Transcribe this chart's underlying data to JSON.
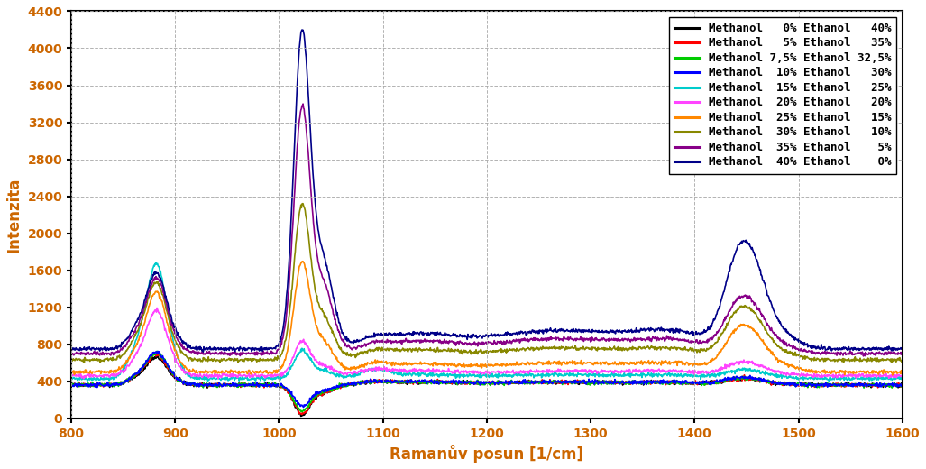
{
  "series": [
    {
      "label": "Methanol   0% Ethanol   40%",
      "color": "#000000",
      "lw": 1.2,
      "base": 360,
      "peak880": 650,
      "peak1020": 50,
      "peak1460": 50,
      "broad1100": 30,
      "broad1280": 30,
      "broad1380": 20
    },
    {
      "label": "Methanol   5% Ethanol   35%",
      "color": "#ff0000",
      "lw": 1.2,
      "base": 360,
      "peak880": 680,
      "peak1020": 60,
      "peak1460": 50,
      "broad1100": 30,
      "broad1280": 30,
      "broad1380": 20
    },
    {
      "label": "Methanol 7,5% Ethanol 32,5%",
      "color": "#00cc00",
      "lw": 1.2,
      "base": 360,
      "peak880": 700,
      "peak1020": 90,
      "peak1460": 55,
      "broad1100": 30,
      "broad1280": 30,
      "broad1380": 20
    },
    {
      "label": "Methanol  10% Ethanol   30%",
      "color": "#0000ff",
      "lw": 1.2,
      "base": 360,
      "peak880": 710,
      "peak1020": 140,
      "peak1460": 60,
      "broad1100": 35,
      "broad1280": 35,
      "broad1380": 25
    },
    {
      "label": "Methanol  15% Ethanol   25%",
      "color": "#00cccc",
      "lw": 1.2,
      "base": 430,
      "peak880": 1640,
      "peak1020": 720,
      "peak1460": 70,
      "broad1100": 40,
      "broad1280": 40,
      "broad1380": 30
    },
    {
      "label": "Methanol  20% Ethanol   20%",
      "color": "#ff44ff",
      "lw": 1.2,
      "base": 460,
      "peak880": 1150,
      "peak1020": 820,
      "peak1460": 110,
      "broad1100": 50,
      "broad1280": 50,
      "broad1380": 40
    },
    {
      "label": "Methanol  25% Ethanol   15%",
      "color": "#ff8800",
      "lw": 1.2,
      "base": 500,
      "peak880": 1350,
      "peak1020": 1650,
      "peak1460": 380,
      "broad1100": 80,
      "broad1280": 100,
      "broad1380": 80
    },
    {
      "label": "Methanol  30% Ethanol   10%",
      "color": "#888800",
      "lw": 1.2,
      "base": 630,
      "peak880": 1450,
      "peak1020": 2250,
      "peak1460": 430,
      "broad1100": 100,
      "broad1280": 130,
      "broad1380": 100
    },
    {
      "label": "Methanol  35% Ethanol    5%",
      "color": "#880088",
      "lw": 1.2,
      "base": 700,
      "peak880": 1500,
      "peak1020": 3280,
      "peak1460": 460,
      "broad1100": 120,
      "broad1280": 160,
      "broad1380": 120
    },
    {
      "label": "Methanol  40% Ethanol    0%",
      "color": "#000088",
      "lw": 1.2,
      "base": 750,
      "peak880": 1560,
      "peak1020": 4070,
      "peak1460": 870,
      "broad1100": 150,
      "broad1280": 200,
      "broad1380": 160
    }
  ],
  "xlim": [
    800,
    1600
  ],
  "ylim": [
    0,
    4400
  ],
  "yticks": [
    0,
    400,
    800,
    1200,
    1600,
    2000,
    2400,
    2800,
    3200,
    3600,
    4000,
    4400
  ],
  "xticks": [
    800,
    900,
    1000,
    1100,
    1200,
    1300,
    1400,
    1500,
    1600
  ],
  "xlabel": "Ramanův posun [1/cm]",
  "ylabel": "Intenzita",
  "background_color": "#ffffff",
  "axis_label_fontsize": 12,
  "tick_fontsize": 10,
  "legend_fontsize": 9
}
